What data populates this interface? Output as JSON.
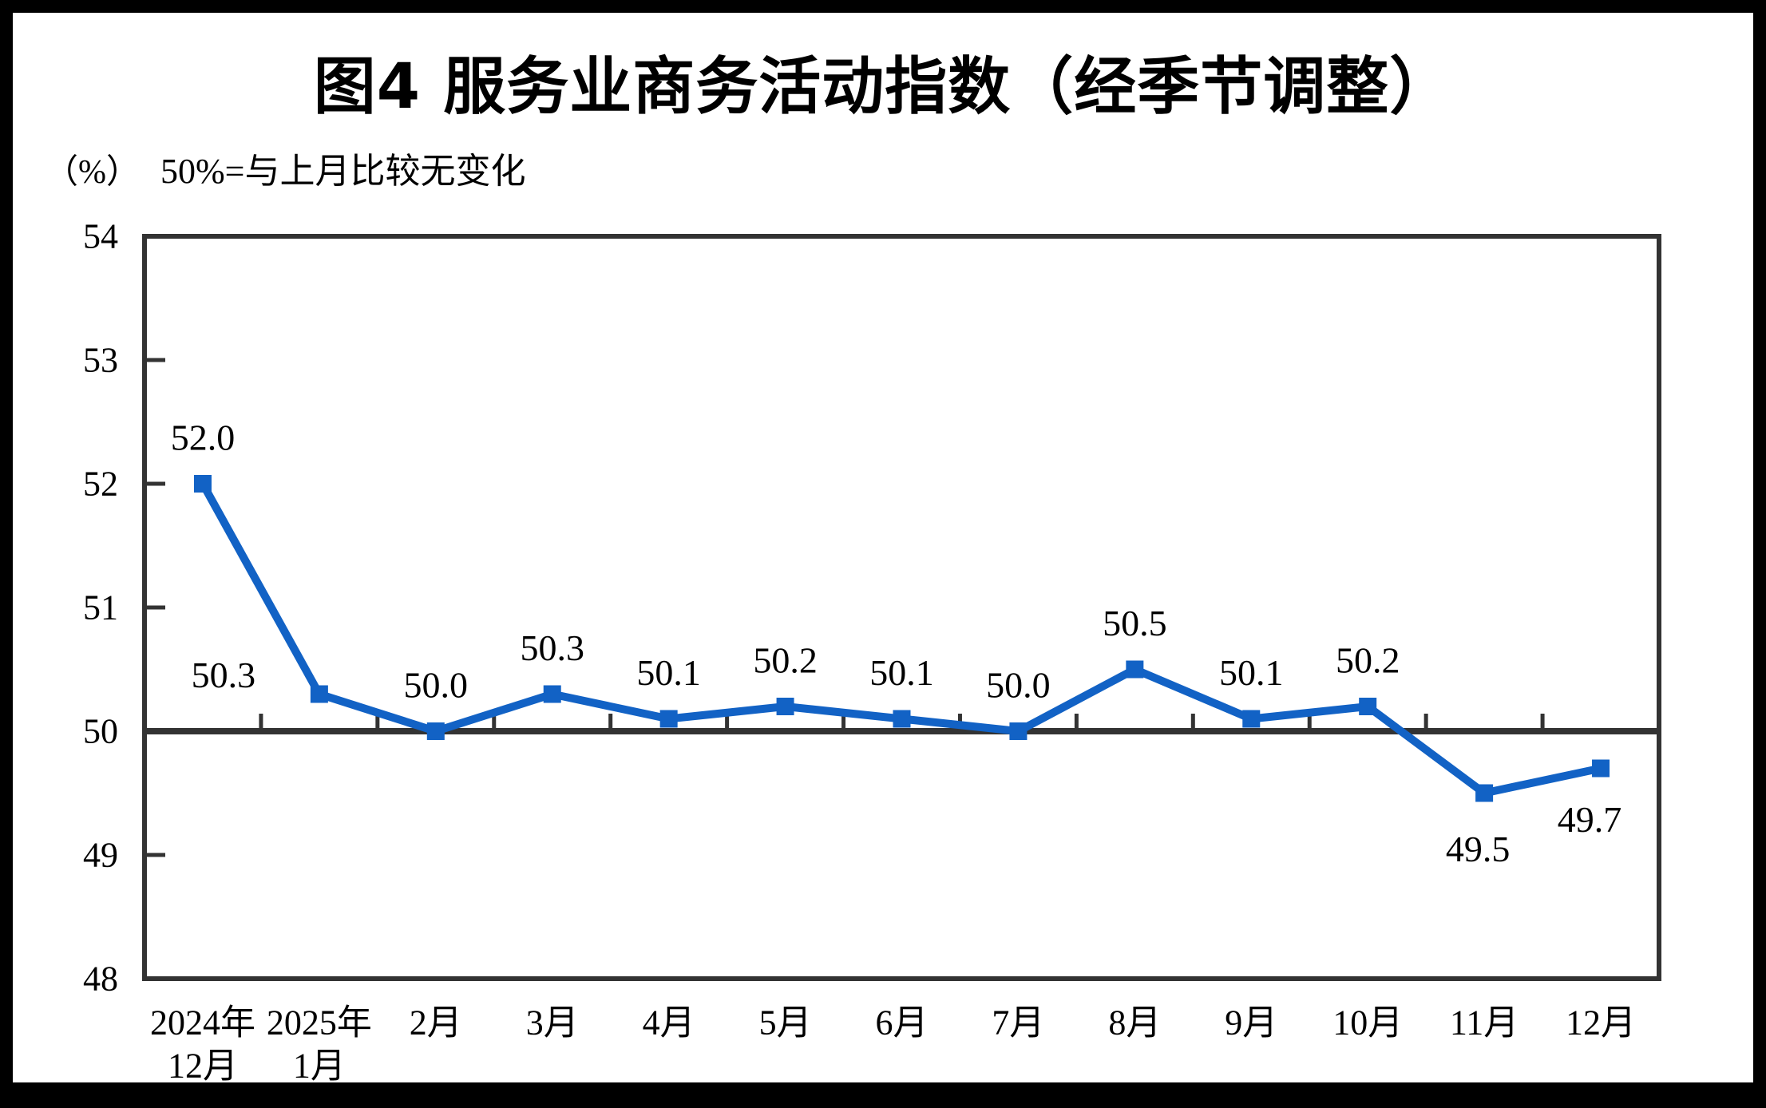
{
  "chart_data": {
    "type": "line",
    "title": "图4  服务业商务活动指数（经季节调整）",
    "unit_label": "（%）",
    "annotation": "50%=与上月比较无变化",
    "categories": [
      [
        "2024年",
        "12月"
      ],
      [
        "2025年",
        "1月"
      ],
      [
        "2月"
      ],
      [
        "3月"
      ],
      [
        "4月"
      ],
      [
        "5月"
      ],
      [
        "6月"
      ],
      [
        "7月"
      ],
      [
        "8月"
      ],
      [
        "9月"
      ],
      [
        "10月"
      ],
      [
        "11月"
      ],
      [
        "12月"
      ]
    ],
    "values": [
      52.0,
      50.3,
      50.0,
      50.3,
      50.1,
      50.2,
      50.1,
      50.0,
      50.5,
      50.1,
      50.2,
      49.5,
      49.7
    ],
    "data_labels": [
      "52.0",
      "50.3",
      "50.0",
      "50.3",
      "50.1",
      "50.2",
      "50.1",
      "50.0",
      "50.5",
      "50.1",
      "50.2",
      "49.5",
      "49.7"
    ],
    "ylim": [
      48,
      54
    ],
    "yticks": [
      "48",
      "49",
      "50",
      "51",
      "52",
      "53",
      "54"
    ],
    "reference_line": 50,
    "grid": false,
    "legend": "none",
    "marker": "square",
    "colors": {
      "line": "#1262C5",
      "axis": "#333333",
      "text": "#000000",
      "background": "#FFFFFF",
      "page_border": "#000000"
    }
  }
}
